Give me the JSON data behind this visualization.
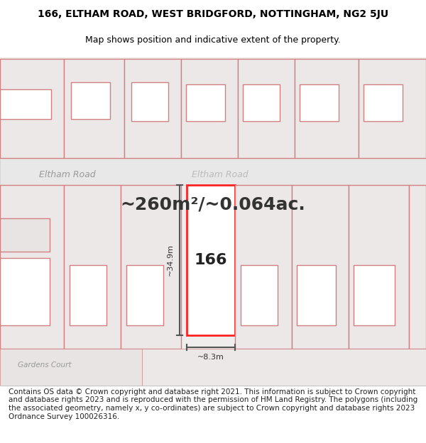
{
  "title_line1": "166, ELTHAM ROAD, WEST BRIDGFORD, NOTTINGHAM, NG2 5JU",
  "title_line2": "Map shows position and indicative extent of the property.",
  "area_text": "~260m²/~0.064ac.",
  "road_label1": "Eltham Road",
  "road_label2": "Eltham Road",
  "property_label": "166",
  "dim_height": "~34.9m",
  "dim_width": "~8.3m",
  "corner_label": "Gardens Court",
  "footer_text": "Contains OS data © Crown copyright and database right 2021. This information is subject to Crown copyright and database rights 2023 and is reproduced with the permission of HM Land Registry. The polygons (including the associated geometry, namely x, y co-ordinates) are subject to Crown copyright and database rights 2023 Ordnance Survey 100026316.",
  "bg_color": "#f5f0f0",
  "road_color": "#e8e8e8",
  "plot_line_color": "#ff4444",
  "dim_line_color": "#555555",
  "road_text_color": "#888888",
  "title_fontsize": 10,
  "subtitle_fontsize": 9,
  "area_fontsize": 18,
  "label_fontsize": 16,
  "footer_fontsize": 7.5
}
